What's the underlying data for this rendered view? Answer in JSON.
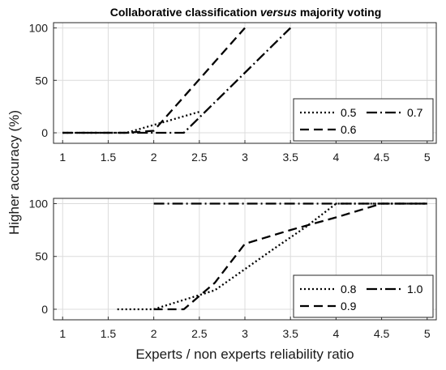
{
  "chart_data": [
    {
      "type": "line",
      "title_prefix": "Collaborative classification ",
      "title_emph": "versus",
      "title_suffix": " majority voting",
      "xlim": [
        0.9,
        5.1
      ],
      "ylim": [
        -10,
        105
      ],
      "xticks": [
        "1",
        "1.5",
        "2",
        "2.5",
        "3",
        "3.5",
        "4",
        "4.5",
        "5"
      ],
      "yticks": [
        "0",
        "50",
        "100"
      ],
      "grid": true,
      "legend_position": "bottom-right",
      "series": [
        {
          "name": "0.5",
          "style": "dotted",
          "x": [
            1,
            1.7,
            2.1,
            2.5
          ],
          "y": [
            0,
            0,
            10,
            20
          ]
        },
        {
          "name": "0.6",
          "style": "dashed",
          "x": [
            1,
            1.7,
            2.0,
            3.0
          ],
          "y": [
            0,
            0,
            2,
            100
          ]
        },
        {
          "name": "0.7",
          "style": "dashdot",
          "x": [
            1,
            2.33,
            3.5
          ],
          "y": [
            0,
            0,
            100
          ]
        }
      ]
    },
    {
      "type": "line",
      "xlim": [
        0.9,
        5.1
      ],
      "ylim": [
        -10,
        105
      ],
      "xticks": [
        "1",
        "1.5",
        "2",
        "2.5",
        "3",
        "3.5",
        "4",
        "4.5",
        "5"
      ],
      "yticks": [
        "0",
        "50",
        "100"
      ],
      "grid": true,
      "legend_position": "bottom-right",
      "series": [
        {
          "name": "0.8",
          "style": "dotted",
          "x": [
            1.6,
            2.0,
            2.67,
            3.0,
            3.33,
            3.67,
            4.0,
            5.0
          ],
          "y": [
            0,
            0,
            18,
            38,
            58,
            78,
            100,
            100
          ]
        },
        {
          "name": "0.9",
          "style": "dashed",
          "x": [
            2.0,
            2.33,
            2.67,
            3.0,
            3.5,
            4.0,
            4.5,
            5.0
          ],
          "y": [
            0,
            0,
            25,
            62,
            75,
            87,
            100,
            100
          ]
        },
        {
          "name": "1.0",
          "style": "dashdot",
          "x": [
            2.0,
            5.0
          ],
          "y": [
            100,
            100
          ]
        }
      ]
    }
  ],
  "ylabel": "Higher  accuracy (%)",
  "xlabel": "Experts / non experts reliability ratio"
}
